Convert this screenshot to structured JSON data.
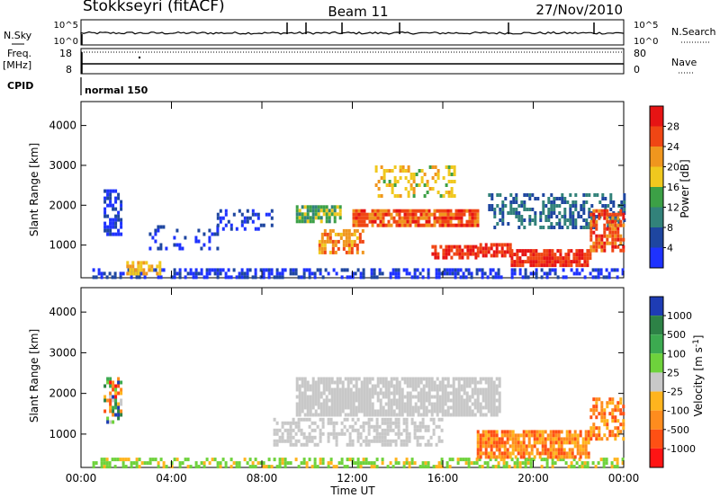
{
  "header": {
    "station": "Stokkseyri (fitACF)",
    "beam": "Beam 11",
    "date": "27/Nov/2010"
  },
  "strip_labels": {
    "nsky": "N.Sky",
    "nsearch": "N.Search",
    "freq_line1": "Freq.",
    "freq_line2": "[MHz]",
    "nave": "Nave",
    "cpid": "CPID",
    "cpid_value": "normal 150"
  },
  "strip_ticks": {
    "nsky_top": "10^5",
    "nsky_bottom": "10^0",
    "nsearch_top": "10^5",
    "nsearch_bottom": "10^0",
    "freq_top": "18",
    "freq_bottom": "8",
    "nave_top": "80",
    "nave_bottom": "0"
  },
  "colors": {
    "power_scale": [
      "#1e32ff",
      "#1e46a0",
      "#32827a",
      "#3ca046",
      "#f0c81e",
      "#f0961e",
      "#f04614",
      "#e61414"
    ],
    "velocity_scale": [
      "#ff1414",
      "#ff5014",
      "#ff8c1e",
      "#ffb41e",
      "#c8c8c8",
      "#6ed23c",
      "#3caa50",
      "#2d8246",
      "#1e3cb4"
    ],
    "ground_scatter": "#c8c8c8"
  },
  "chart_data": [
    {
      "type": "heatmap",
      "panel": "power",
      "xlabel": "",
      "ylabel": "Slant Range [km]",
      "x_ticks": [
        "00:00",
        "04:00",
        "08:00",
        "12:00",
        "16:00",
        "20:00",
        "00:00"
      ],
      "y_ticks": [
        "1000",
        "2000",
        "3000",
        "4000"
      ],
      "ylim": [
        180,
        4600
      ],
      "colorbar": {
        "label": "Power [dB]",
        "ticks": [
          "4",
          "8",
          "12",
          "16",
          "20",
          "24",
          "28"
        ],
        "range": [
          0,
          32
        ]
      },
      "regions": [
        {
          "t": [
            0.5,
            24
          ],
          "r": [
            200,
            420
          ],
          "level": 3,
          "density": 0.5
        },
        {
          "t": [
            1.0,
            1.8
          ],
          "r": [
            1300,
            2400
          ],
          "level": 3,
          "density": 0.6
        },
        {
          "t": [
            2.0,
            3.5
          ],
          "r": [
            300,
            600
          ],
          "level": 20,
          "density": 0.7
        },
        {
          "t": [
            3.0,
            6.0
          ],
          "r": [
            900,
            1500
          ],
          "level": 3,
          "density": 0.25
        },
        {
          "t": [
            6.0,
            8.5
          ],
          "r": [
            1400,
            1900
          ],
          "level": 3,
          "density": 0.3
        },
        {
          "t": [
            9.5,
            11.5
          ],
          "r": [
            1600,
            2000
          ],
          "level": 14,
          "density": 0.8
        },
        {
          "t": [
            10.5,
            12.5
          ],
          "r": [
            800,
            1400
          ],
          "level": 22,
          "density": 0.6
        },
        {
          "t": [
            12.0,
            17.5
          ],
          "r": [
            1500,
            1900
          ],
          "level": 25,
          "density": 0.85
        },
        {
          "t": [
            13.0,
            16.5
          ],
          "r": [
            2200,
            3000
          ],
          "level": 18,
          "density": 0.4
        },
        {
          "t": [
            15.5,
            17.5
          ],
          "r": [
            700,
            1000
          ],
          "level": 28,
          "density": 0.7
        },
        {
          "t": [
            17.5,
            19.0
          ],
          "r": [
            700,
            1050
          ],
          "level": 28,
          "density": 0.8
        },
        {
          "t": [
            19.0,
            22.5
          ],
          "r": [
            450,
            900
          ],
          "level": 28,
          "density": 0.85
        },
        {
          "t": [
            18.0,
            24.0
          ],
          "r": [
            1400,
            2300
          ],
          "level": 8,
          "density": 0.45
        },
        {
          "t": [
            22.5,
            24.0
          ],
          "r": [
            900,
            1900
          ],
          "level": 26,
          "density": 0.7
        }
      ]
    },
    {
      "type": "heatmap",
      "panel": "velocity",
      "xlabel": "Time UT",
      "ylabel": "Slant Range [km]",
      "x_ticks": [
        "00:00",
        "04:00",
        "08:00",
        "12:00",
        "16:00",
        "20:00",
        "00:00"
      ],
      "y_ticks": [
        "1000",
        "2000",
        "3000",
        "4000"
      ],
      "ylim": [
        180,
        4600
      ],
      "colorbar": {
        "label": "Velocity [m s^-1]",
        "ticks": [
          "1000",
          "500",
          "100",
          "25",
          "-25",
          "-100",
          "-500",
          "-1000"
        ]
      },
      "regions": [
        {
          "t": [
            0.5,
            24
          ],
          "r": [
            200,
            420
          ],
          "category": "low-positive",
          "density": 0.5
        },
        {
          "t": [
            1.0,
            1.8
          ],
          "r": [
            1300,
            2400
          ],
          "category": "mixed",
          "density": 0.6
        },
        {
          "t": [
            9.5,
            18.5
          ],
          "r": [
            1500,
            2400
          ],
          "category": "ground",
          "density": 0.85
        },
        {
          "t": [
            8.5,
            16.0
          ],
          "r": [
            700,
            1400
          ],
          "category": "ground",
          "density": 0.5
        },
        {
          "t": [
            17.5,
            22.5
          ],
          "r": [
            450,
            1100
          ],
          "category": "negative",
          "density": 0.8
        },
        {
          "t": [
            22.5,
            24.0
          ],
          "r": [
            900,
            1900
          ],
          "category": "negative",
          "density": 0.6
        }
      ]
    }
  ]
}
